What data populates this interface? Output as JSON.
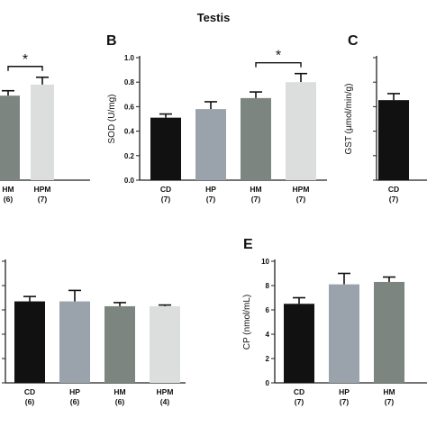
{
  "figure_title": "Testis",
  "colors": {
    "CD": "#111111",
    "HP": "#9aa3ab",
    "HM": "#7c8580",
    "HPM": "#dcdedd"
  },
  "chart_data": [
    {
      "id": "A",
      "panel_label": "",
      "type": "bar",
      "categories": [
        "HM",
        "HPM"
      ],
      "ns": [
        "(6)",
        "(7)"
      ],
      "values": [
        0.69,
        0.78
      ],
      "errors": [
        0.04,
        0.06
      ],
      "ylabel": "",
      "yticks": [],
      "ylim": [
        0,
        1.0
      ],
      "significance": [
        {
          "from": "HM",
          "to": "HPM",
          "label": "*"
        }
      ]
    },
    {
      "id": "B",
      "panel_label": "B",
      "type": "bar",
      "categories": [
        "CD",
        "HP",
        "HM",
        "HPM"
      ],
      "ns": [
        "(7)",
        "(7)",
        "(7)",
        "(7)"
      ],
      "values": [
        0.51,
        0.58,
        0.67,
        0.8
      ],
      "errors": [
        0.03,
        0.06,
        0.05,
        0.07
      ],
      "ylabel": "SOD (U/mg)",
      "yticks": [
        "0.0",
        "0.2",
        "0.4",
        "0.6",
        "0.8",
        "1.0"
      ],
      "ylim": [
        0,
        1.0
      ],
      "significance": [
        {
          "from": "HM",
          "to": "HPM",
          "label": "*"
        }
      ]
    },
    {
      "id": "C",
      "panel_label": "C",
      "type": "bar",
      "categories": [
        "CD"
      ],
      "ns": [
        "(7)"
      ],
      "values": [
        19.6
      ],
      "errors": [
        1.6
      ],
      "ylabel": "GST (µmol/min/g)",
      "yticks": [],
      "ylim": [
        0,
        30
      ]
    },
    {
      "id": "D",
      "panel_label": "",
      "type": "bar",
      "categories": [
        "CD",
        "HP",
        "HM",
        "HPM"
      ],
      "ns": [
        "(6)",
        "(6)",
        "(6)",
        "(4)"
      ],
      "values": [
        0.67,
        0.67,
        0.63,
        0.63
      ],
      "errors": [
        0.04,
        0.09,
        0.03,
        0.01
      ],
      "ylabel": "",
      "yticks": [],
      "ylim": [
        0,
        1.0
      ]
    },
    {
      "id": "E",
      "panel_label": "E",
      "type": "bar",
      "categories": [
        "CD",
        "HP",
        "HM"
      ],
      "ns": [
        "(7)",
        "(7)",
        "(7)"
      ],
      "values": [
        6.5,
        8.1,
        8.3
      ],
      "errors": [
        0.5,
        0.9,
        0.4
      ],
      "ylabel": "CP (nmol/mL)",
      "yticks": [
        "0",
        "2",
        "4",
        "6",
        "8",
        "10"
      ],
      "ylim": [
        0,
        10
      ]
    }
  ]
}
